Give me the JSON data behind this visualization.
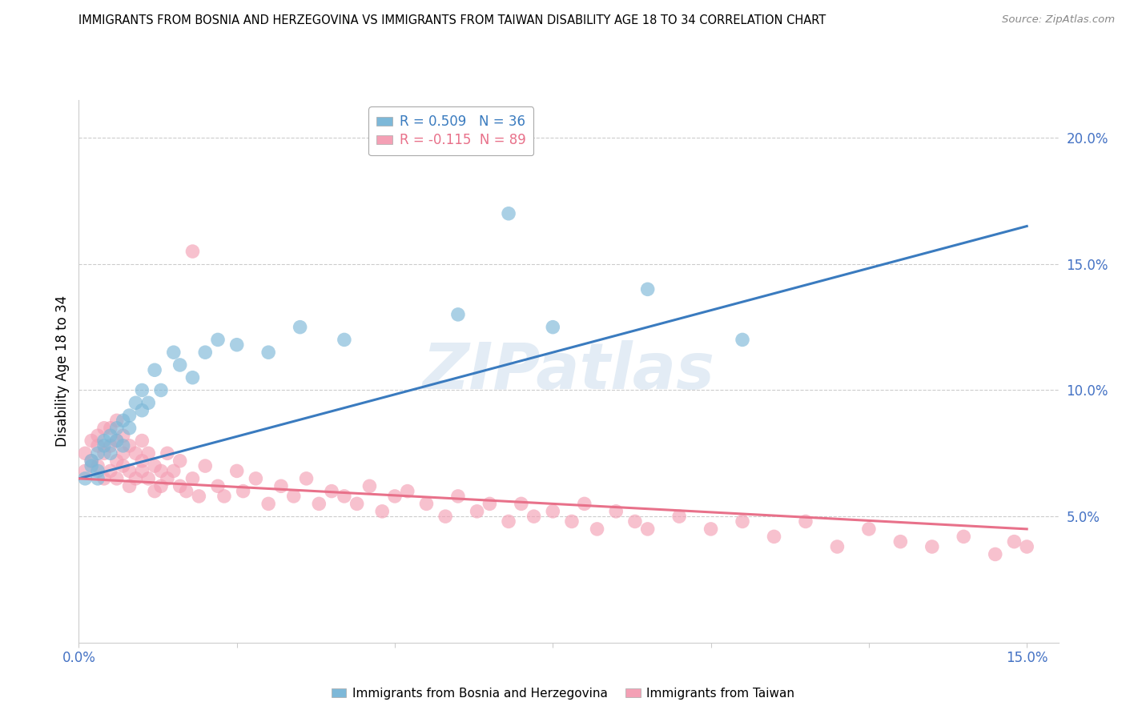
{
  "title": "IMMIGRANTS FROM BOSNIA AND HERZEGOVINA VS IMMIGRANTS FROM TAIWAN DISABILITY AGE 18 TO 34 CORRELATION CHART",
  "source": "Source: ZipAtlas.com",
  "ylabel": "Disability Age 18 to 34",
  "xlim": [
    0.0,
    0.155
  ],
  "ylim": [
    0.0,
    0.215
  ],
  "xticks": [
    0.0,
    0.025,
    0.05,
    0.075,
    0.1,
    0.125,
    0.15
  ],
  "yticks": [
    0.05,
    0.1,
    0.15,
    0.2
  ],
  "ytick_labels": [
    "5.0%",
    "10.0%",
    "15.0%",
    "20.0%"
  ],
  "bosnia_R": 0.509,
  "bosnia_N": 36,
  "taiwan_R": -0.115,
  "taiwan_N": 89,
  "bosnia_color": "#7db8d8",
  "taiwan_color": "#f4a0b5",
  "bosnia_line_color": "#3a7bbf",
  "taiwan_line_color": "#e8718a",
  "watermark": "ZIPatlas",
  "bosnia_label": "Immigrants from Bosnia and Herzegovina",
  "taiwan_label": "Immigrants from Taiwan",
  "bosnia_x": [
    0.001,
    0.002,
    0.002,
    0.003,
    0.003,
    0.003,
    0.004,
    0.004,
    0.005,
    0.005,
    0.006,
    0.006,
    0.007,
    0.007,
    0.008,
    0.008,
    0.009,
    0.01,
    0.01,
    0.011,
    0.012,
    0.013,
    0.015,
    0.016,
    0.018,
    0.02,
    0.022,
    0.025,
    0.03,
    0.035,
    0.042,
    0.06,
    0.068,
    0.075,
    0.09,
    0.105
  ],
  "bosnia_y": [
    0.065,
    0.07,
    0.072,
    0.068,
    0.075,
    0.065,
    0.08,
    0.078,
    0.082,
    0.075,
    0.08,
    0.085,
    0.078,
    0.088,
    0.09,
    0.085,
    0.095,
    0.092,
    0.1,
    0.095,
    0.108,
    0.1,
    0.115,
    0.11,
    0.105,
    0.115,
    0.12,
    0.118,
    0.115,
    0.125,
    0.12,
    0.13,
    0.17,
    0.125,
    0.14,
    0.12
  ],
  "taiwan_x": [
    0.001,
    0.001,
    0.002,
    0.002,
    0.003,
    0.003,
    0.003,
    0.004,
    0.004,
    0.004,
    0.005,
    0.005,
    0.005,
    0.006,
    0.006,
    0.006,
    0.006,
    0.007,
    0.007,
    0.007,
    0.008,
    0.008,
    0.008,
    0.009,
    0.009,
    0.01,
    0.01,
    0.01,
    0.011,
    0.011,
    0.012,
    0.012,
    0.013,
    0.013,
    0.014,
    0.014,
    0.015,
    0.016,
    0.016,
    0.017,
    0.018,
    0.018,
    0.019,
    0.02,
    0.022,
    0.023,
    0.025,
    0.026,
    0.028,
    0.03,
    0.032,
    0.034,
    0.036,
    0.038,
    0.04,
    0.042,
    0.044,
    0.046,
    0.048,
    0.05,
    0.052,
    0.055,
    0.058,
    0.06,
    0.063,
    0.065,
    0.068,
    0.07,
    0.072,
    0.075,
    0.078,
    0.08,
    0.082,
    0.085,
    0.088,
    0.09,
    0.095,
    0.1,
    0.105,
    0.11,
    0.115,
    0.12,
    0.125,
    0.13,
    0.135,
    0.14,
    0.145,
    0.148,
    0.15
  ],
  "taiwan_y": [
    0.068,
    0.075,
    0.072,
    0.08,
    0.07,
    0.078,
    0.082,
    0.075,
    0.085,
    0.065,
    0.078,
    0.068,
    0.085,
    0.072,
    0.08,
    0.065,
    0.088,
    0.075,
    0.07,
    0.082,
    0.068,
    0.078,
    0.062,
    0.075,
    0.065,
    0.072,
    0.068,
    0.08,
    0.065,
    0.075,
    0.06,
    0.07,
    0.068,
    0.062,
    0.075,
    0.065,
    0.068,
    0.062,
    0.072,
    0.06,
    0.065,
    0.155,
    0.058,
    0.07,
    0.062,
    0.058,
    0.068,
    0.06,
    0.065,
    0.055,
    0.062,
    0.058,
    0.065,
    0.055,
    0.06,
    0.058,
    0.055,
    0.062,
    0.052,
    0.058,
    0.06,
    0.055,
    0.05,
    0.058,
    0.052,
    0.055,
    0.048,
    0.055,
    0.05,
    0.052,
    0.048,
    0.055,
    0.045,
    0.052,
    0.048,
    0.045,
    0.05,
    0.045,
    0.048,
    0.042,
    0.048,
    0.038,
    0.045,
    0.04,
    0.038,
    0.042,
    0.035,
    0.04,
    0.038
  ]
}
